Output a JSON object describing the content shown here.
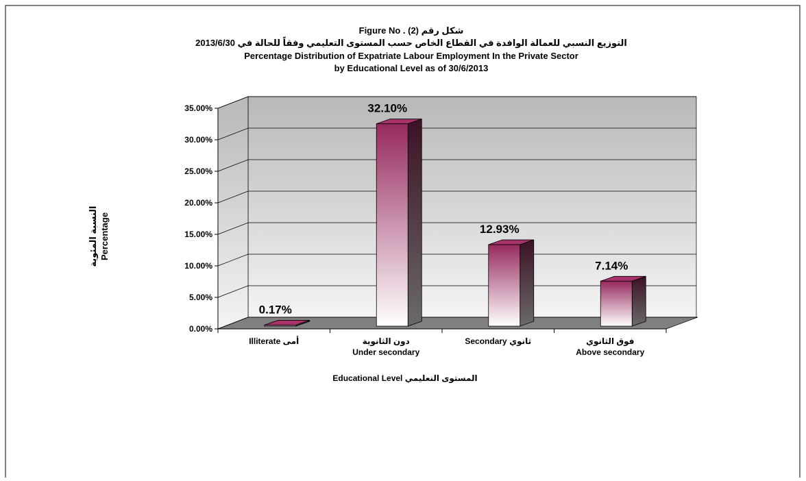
{
  "chart_data": {
    "type": "bar3d",
    "title": [
      "Figure No . (2) شكل رقم",
      "التوزيع النسبي للعمالة الوافدة في القطاع الخاص حسب المستوى التعليمي وفقاً للحالة في 2013/6/30",
      "Percentage Distribution of Expatriate Labour Employment In the Private Sector",
      "by Educational Level  as of  30/6/2013"
    ],
    "y_label": [
      "النسبة المئوية",
      "Percentage"
    ],
    "x_label": "Educational Level المستوى النعليمي",
    "categories": [
      [
        "Illiterate أمى"
      ],
      [
        "دون الثانوية",
        "Under secondary"
      ],
      [
        "Secondary  ثانوي"
      ],
      [
        "فوق الثانوي",
        "Above secondary"
      ]
    ],
    "values": [
      0.17,
      32.1,
      12.93,
      7.14
    ],
    "value_labels": [
      "0.17%",
      "32.10%",
      "12.93%",
      "7.14%"
    ],
    "color": "#962a5e",
    "ylim": [
      0,
      35
    ],
    "yticks": [
      {
        "value": 0,
        "label": "0.00%"
      },
      {
        "value": 5,
        "label": "5.00%"
      },
      {
        "value": 10,
        "label": "10.00%"
      },
      {
        "value": 15,
        "label": "15.00%"
      },
      {
        "value": 20,
        "label": "20.00%"
      },
      {
        "value": 25,
        "label": "25.00%"
      },
      {
        "value": 30,
        "label": "30.00%"
      },
      {
        "value": 35,
        "label": "35.00%"
      }
    ],
    "grid": true
  }
}
